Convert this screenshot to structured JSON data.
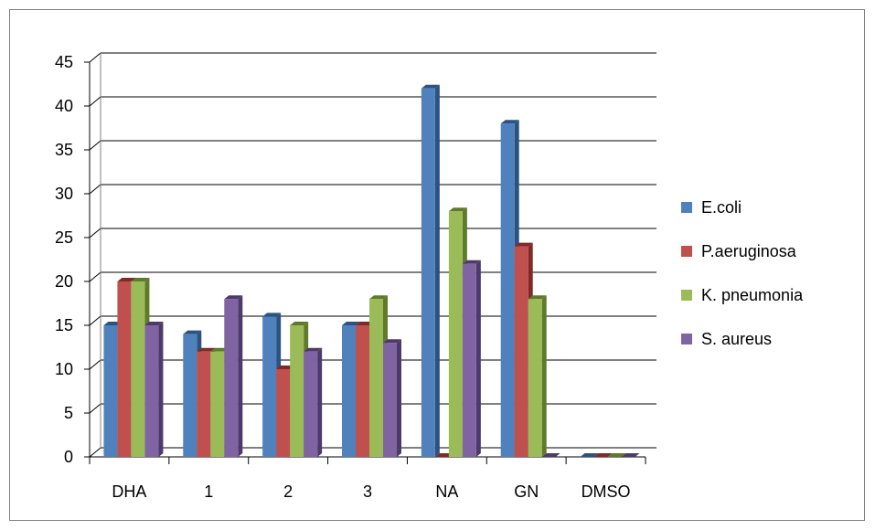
{
  "chart_data": {
    "type": "bar",
    "title": "",
    "xlabel": "",
    "ylabel": "",
    "categories": [
      "DHA",
      "1",
      "2",
      "3",
      "NA",
      "GN",
      "DMSO"
    ],
    "ylim": [
      0,
      45
    ],
    "yticks": [
      "0",
      "5",
      "10",
      "15",
      "20",
      "25",
      "30",
      "35",
      "40",
      "45"
    ],
    "grid": true,
    "legend_position": "right",
    "style": "3d-clustered-column",
    "series": [
      {
        "name": "E.coli",
        "color": "#4f81bd",
        "dark": "#2c5282",
        "values": [
          15,
          14,
          16,
          15,
          42,
          38,
          0
        ]
      },
      {
        "name": "P.aeruginosa",
        "color": "#c0504d",
        "dark": "#7f2a28",
        "values": [
          20,
          12,
          10,
          15,
          0,
          24,
          0
        ]
      },
      {
        "name": "K. pneumonia",
        "color": "#9bbb59",
        "dark": "#5e7a2a",
        "values": [
          20,
          12,
          15,
          18,
          28,
          18,
          0
        ]
      },
      {
        "name": "S. aureus",
        "color": "#8064a2",
        "dark": "#4e3a6a",
        "values": [
          15,
          18,
          12,
          13,
          22,
          0,
          0
        ]
      }
    ]
  }
}
